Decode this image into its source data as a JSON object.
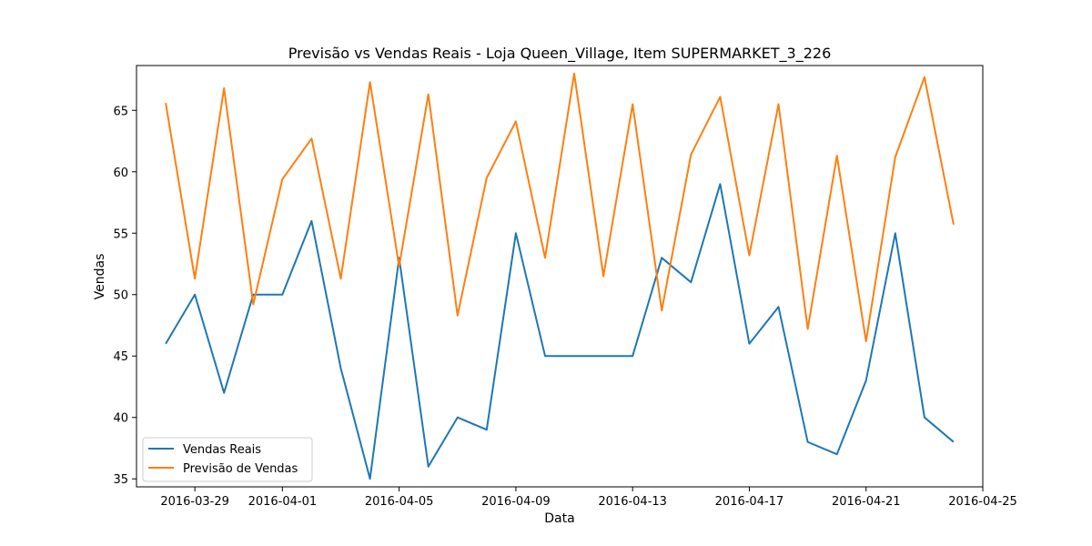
{
  "chart_data": {
    "type": "line",
    "title": "Previsão vs Vendas Reais - Loja Queen_Village, Item SUPERMARKET_3_226",
    "xlabel": "Data",
    "ylabel": "Vendas",
    "x": [
      "2016-03-28",
      "2016-03-29",
      "2016-03-30",
      "2016-03-31",
      "2016-04-01",
      "2016-04-02",
      "2016-04-03",
      "2016-04-04",
      "2016-04-05",
      "2016-04-06",
      "2016-04-07",
      "2016-04-08",
      "2016-04-09",
      "2016-04-10",
      "2016-04-11",
      "2016-04-12",
      "2016-04-13",
      "2016-04-14",
      "2016-04-15",
      "2016-04-16",
      "2016-04-17",
      "2016-04-18",
      "2016-04-19",
      "2016-04-20",
      "2016-04-21",
      "2016-04-22",
      "2016-04-23",
      "2016-04-24"
    ],
    "xlim": [
      "2016-03-27",
      "2016-04-25"
    ],
    "ylim": [
      34.35,
      68.65
    ],
    "x_ticks": [
      "2016-03-29",
      "2016-04-01",
      "2016-04-05",
      "2016-04-09",
      "2016-04-13",
      "2016-04-17",
      "2016-04-21",
      "2016-04-25"
    ],
    "y_ticks": [
      35,
      40,
      45,
      50,
      55,
      60,
      65
    ],
    "grid": false,
    "legend_position": "lower-left",
    "series": [
      {
        "name": "Vendas Reais",
        "color": "#1f77b4",
        "values": [
          46,
          50,
          42,
          50,
          50,
          56,
          44,
          35,
          53,
          36,
          40,
          39,
          55,
          45,
          45,
          45,
          45,
          53,
          51,
          59,
          46,
          49,
          38,
          37,
          43,
          55,
          40,
          38
        ]
      },
      {
        "name": "Previsão de Vendas",
        "color": "#ff7f0e",
        "values": [
          65.6,
          51.3,
          66.8,
          49.2,
          59.4,
          62.7,
          51.3,
          67.3,
          52.3,
          66.3,
          48.3,
          59.5,
          64.1,
          53.0,
          68.0,
          51.5,
          65.5,
          48.7,
          61.4,
          66.1,
          53.2,
          65.5,
          47.2,
          61.3,
          46.2,
          61.2,
          67.7,
          55.7
        ]
      }
    ]
  }
}
